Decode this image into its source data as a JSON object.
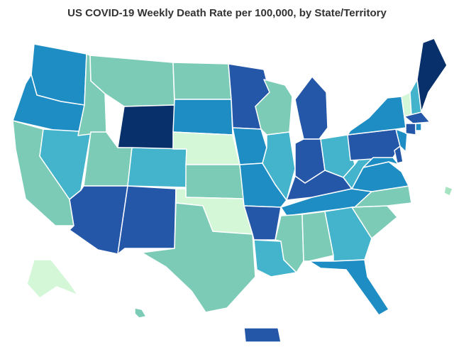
{
  "title": "US COVID-19 Weekly Death Rate per 100,000, by State/Territory",
  "palette": {
    "lightest": "#d4f7d8",
    "light": "#a6e3c1",
    "teal": "#7ccbb6",
    "medium": "#43b4cc",
    "blue": "#1e8dc4",
    "darkblue": "#2457a8",
    "navy": "#08306b"
  },
  "states": [
    {
      "name": "Washington",
      "shade": "blue"
    },
    {
      "name": "Oregon",
      "shade": "blue"
    },
    {
      "name": "California",
      "shade": "teal"
    },
    {
      "name": "Nevada",
      "shade": "medium"
    },
    {
      "name": "Idaho",
      "shade": "teal"
    },
    {
      "name": "Montana",
      "shade": "teal"
    },
    {
      "name": "Wyoming",
      "shade": "navy"
    },
    {
      "name": "Utah",
      "shade": "teal"
    },
    {
      "name": "Arizona",
      "shade": "darkblue"
    },
    {
      "name": "Colorado",
      "shade": "medium"
    },
    {
      "name": "New Mexico",
      "shade": "darkblue"
    },
    {
      "name": "North Dakota",
      "shade": "teal"
    },
    {
      "name": "South Dakota",
      "shade": "blue"
    },
    {
      "name": "Nebraska",
      "shade": "lightest"
    },
    {
      "name": "Kansas",
      "shade": "teal"
    },
    {
      "name": "Oklahoma",
      "shade": "lightest"
    },
    {
      "name": "Texas",
      "shade": "teal"
    },
    {
      "name": "Minnesota",
      "shade": "darkblue"
    },
    {
      "name": "Iowa",
      "shade": "blue"
    },
    {
      "name": "Missouri",
      "shade": "blue"
    },
    {
      "name": "Arkansas",
      "shade": "darkblue"
    },
    {
      "name": "Louisiana",
      "shade": "medium"
    },
    {
      "name": "Wisconsin",
      "shade": "teal"
    },
    {
      "name": "Illinois",
      "shade": "medium"
    },
    {
      "name": "Michigan",
      "shade": "darkblue"
    },
    {
      "name": "Indiana",
      "shade": "darkblue"
    },
    {
      "name": "Ohio",
      "shade": "medium"
    },
    {
      "name": "Kentucky",
      "shade": "darkblue"
    },
    {
      "name": "Tennessee",
      "shade": "blue"
    },
    {
      "name": "Mississippi",
      "shade": "teal"
    },
    {
      "name": "Alabama",
      "shade": "teal"
    },
    {
      "name": "Georgia",
      "shade": "medium"
    },
    {
      "name": "Florida",
      "shade": "blue"
    },
    {
      "name": "South Carolina",
      "shade": "teal"
    },
    {
      "name": "North Carolina",
      "shade": "teal"
    },
    {
      "name": "Virginia",
      "shade": "blue"
    },
    {
      "name": "West Virginia",
      "shade": "medium"
    },
    {
      "name": "Pennsylvania",
      "shade": "darkblue"
    },
    {
      "name": "New York",
      "shade": "blue"
    },
    {
      "name": "Vermont",
      "shade": "lightest"
    },
    {
      "name": "New Hampshire",
      "shade": "medium"
    },
    {
      "name": "Maine",
      "shade": "navy"
    },
    {
      "name": "Massachusetts",
      "shade": "darkblue"
    },
    {
      "name": "Rhode Island",
      "shade": "blue"
    },
    {
      "name": "Connecticut",
      "shade": "darkblue"
    },
    {
      "name": "New Jersey",
      "shade": "blue"
    },
    {
      "name": "Delaware",
      "shade": "darkblue"
    },
    {
      "name": "Maryland",
      "shade": "blue"
    },
    {
      "name": "Alaska",
      "shade": "lightest"
    },
    {
      "name": "Hawaii",
      "shade": "teal"
    },
    {
      "name": "Puerto Rico",
      "shade": "darkblue"
    },
    {
      "name": "Virgin Islands",
      "shade": "light"
    }
  ]
}
